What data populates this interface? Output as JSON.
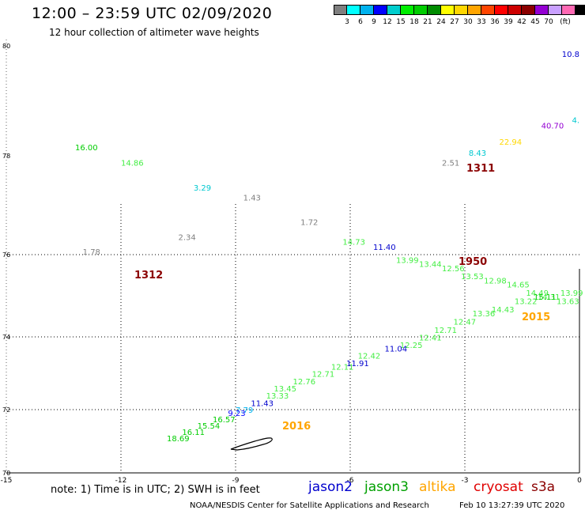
{
  "header": {
    "title": "12:00 – 23:59 UTC 02/09/2020",
    "subtitle": "12 hour collection of altimeter wave heights"
  },
  "colorbar": {
    "colors": [
      "#7f7f7f",
      "#00ffff",
      "#00b2ee",
      "#0000ff",
      "#00cdcd",
      "#00ee00",
      "#00cd00",
      "#008b00",
      "#ffff00",
      "#ffd700",
      "#ffa500",
      "#ff4500",
      "#ff0000",
      "#cd0000",
      "#8b0000",
      "#9400d3",
      "#c9a0ff",
      "#ff69b4",
      "#000000"
    ],
    "ticks": [
      "3",
      "6",
      "9",
      "12",
      "15",
      "18",
      "21",
      "24",
      "27",
      "30",
      "33",
      "36",
      "39",
      "42",
      "45",
      "70",
      "(ft)"
    ]
  },
  "map": {
    "lon_ticks": [
      "-15",
      "-12",
      "-9",
      "-6",
      "-3",
      "0"
    ],
    "lat_ticks": [
      "70",
      "72",
      "74",
      "76",
      "78",
      "80"
    ]
  },
  "chart_data": {
    "type": "scatter",
    "title": "12:00 – 23:59 UTC 02/09/2020",
    "xlabel": "",
    "ylabel": "",
    "xlim": [
      -15,
      0
    ],
    "ylim": [
      70,
      80
    ],
    "grid": true,
    "units": "ft",
    "points": [
      {
        "lon": -13.2,
        "lat": 78.1,
        "value": "16.00",
        "color": "#00cd00"
      },
      {
        "lon": -12.0,
        "lat": 77.8,
        "value": "14.86",
        "color": "#44ee44"
      },
      {
        "lon": -10.1,
        "lat": 77.3,
        "value": "3.29",
        "color": "#00c8d0"
      },
      {
        "lon": -8.8,
        "lat": 77.1,
        "value": "1.43",
        "color": "#7f7f7f"
      },
      {
        "lon": -7.3,
        "lat": 76.6,
        "value": "1.72",
        "color": "#7f7f7f"
      },
      {
        "lon": -6.2,
        "lat": 76.2,
        "value": "14.73",
        "color": "#44ee44"
      },
      {
        "lon": -5.4,
        "lat": 76.1,
        "value": "11.40",
        "color": "#0000cd"
      },
      {
        "lon": -4.8,
        "lat": 75.8,
        "value": "13.99",
        "color": "#44ee44"
      },
      {
        "lon": -4.2,
        "lat": 75.7,
        "value": "13.44",
        "color": "#44ee44"
      },
      {
        "lon": -3.6,
        "lat": 75.6,
        "value": "12.56",
        "color": "#44ee44"
      },
      {
        "lon": -3.1,
        "lat": 75.4,
        "value": "13.53",
        "color": "#44ee44"
      },
      {
        "lon": -2.5,
        "lat": 75.3,
        "value": "12.98",
        "color": "#44ee44"
      },
      {
        "lon": -1.9,
        "lat": 75.2,
        "value": "14.65",
        "color": "#44ee44"
      },
      {
        "lon": -1.4,
        "lat": 75.0,
        "value": "14.49",
        "color": "#44ee44"
      },
      {
        "lon": -1.1,
        "lat": 74.9,
        "value": "14.31",
        "color": "#44ee44"
      },
      {
        "lon": -1.2,
        "lat": 74.9,
        "value": "15.11",
        "color": "#00cd00"
      },
      {
        "lon": -0.5,
        "lat": 75.0,
        "value": "13.99",
        "color": "#44ee44"
      },
      {
        "lon": -1.7,
        "lat": 74.8,
        "value": "13.22",
        "color": "#44ee44"
      },
      {
        "lon": -0.6,
        "lat": 74.8,
        "value": "13.63",
        "color": "#44ee44"
      },
      {
        "lon": -2.3,
        "lat": 74.6,
        "value": "14.43",
        "color": "#44ee44"
      },
      {
        "lon": -2.8,
        "lat": 74.5,
        "value": "13.36",
        "color": "#44ee44"
      },
      {
        "lon": -3.3,
        "lat": 74.3,
        "value": "12.47",
        "color": "#44ee44"
      },
      {
        "lon": -3.8,
        "lat": 74.1,
        "value": "12.71",
        "color": "#44ee44"
      },
      {
        "lon": -4.2,
        "lat": 73.9,
        "value": "12.41",
        "color": "#44ee44"
      },
      {
        "lon": -4.7,
        "lat": 73.7,
        "value": "12.25",
        "color": "#44ee44"
      },
      {
        "lon": -5.1,
        "lat": 73.6,
        "value": "11.04",
        "color": "#0000cd"
      },
      {
        "lon": -5.8,
        "lat": 73.4,
        "value": "12.42",
        "color": "#44ee44"
      },
      {
        "lon": -6.1,
        "lat": 73.2,
        "value": "11.91",
        "color": "#0000cd"
      },
      {
        "lon": -6.5,
        "lat": 73.1,
        "value": "12.11",
        "color": "#44ee44"
      },
      {
        "lon": -7.0,
        "lat": 72.9,
        "value": "12.71",
        "color": "#44ee44"
      },
      {
        "lon": -7.5,
        "lat": 72.7,
        "value": "12.76",
        "color": "#44ee44"
      },
      {
        "lon": -8.0,
        "lat": 72.5,
        "value": "13.45",
        "color": "#44ee44"
      },
      {
        "lon": -8.2,
        "lat": 72.3,
        "value": "13.33",
        "color": "#44ee44"
      },
      {
        "lon": -8.6,
        "lat": 72.1,
        "value": "11.43",
        "color": "#0000cd"
      },
      {
        "lon": -9.0,
        "lat": 71.9,
        "value": "7.79",
        "color": "#00b2ee"
      },
      {
        "lon": -9.2,
        "lat": 71.8,
        "value": "9.23",
        "color": "#0000ff"
      },
      {
        "lon": -9.6,
        "lat": 71.6,
        "value": "16.57",
        "color": "#00cd00"
      },
      {
        "lon": -10.0,
        "lat": 71.4,
        "value": "15.54",
        "color": "#00cd00"
      },
      {
        "lon": -10.4,
        "lat": 71.2,
        "value": "16.11",
        "color": "#00cd00"
      },
      {
        "lon": -10.8,
        "lat": 71.0,
        "value": "18.69",
        "color": "#00cd00"
      },
      {
        "lon": -13.0,
        "lat": 76.0,
        "value": "1.78",
        "color": "#7f7f7f"
      },
      {
        "lon": -10.5,
        "lat": 76.3,
        "value": "2.34",
        "color": "#7f7f7f"
      },
      {
        "lon": -3.6,
        "lat": 77.8,
        "value": "2.51",
        "color": "#7f7f7f"
      },
      {
        "lon": -2.9,
        "lat": 78.0,
        "value": "8.43",
        "color": "#00c8d0"
      },
      {
        "lon": -2.1,
        "lat": 78.2,
        "value": "22.94",
        "color": "#ffd700"
      },
      {
        "lon": -1.0,
        "lat": 78.5,
        "value": "40.70",
        "color": "#9400d3"
      },
      {
        "lon": 0.0,
        "lat": 78.6,
        "value": "4.",
        "color": "#00c8d0"
      },
      {
        "lon": 0.0,
        "lat": 79.8,
        "value": "10.8",
        "color": "#0000cd"
      }
    ],
    "track_labels": [
      {
        "text": "1312",
        "color": "#8b0000"
      },
      {
        "text": "1311",
        "color": "#8b0000"
      },
      {
        "text": "1950",
        "color": "#8b0000"
      },
      {
        "text": "2015",
        "color": "#ffa500"
      },
      {
        "text": "2016",
        "color": "#ffa500"
      }
    ]
  },
  "footer": {
    "note": "note: 1) Time is in UTC; 2) SWH is in feet",
    "satellites": [
      {
        "name": "jason2",
        "color": "#0000cd"
      },
      {
        "name": "jason3",
        "color": "#00a000"
      },
      {
        "name": "altika",
        "color": "#ffa500"
      },
      {
        "name": "cryosat",
        "color": "#e00000"
      },
      {
        "name": "s3a",
        "color": "#8b0000"
      }
    ],
    "credit": "NOAA/NESDIS Center for Satellite Applications and Research",
    "timestamp": "Feb 10 13:27:39 UTC 2020"
  }
}
